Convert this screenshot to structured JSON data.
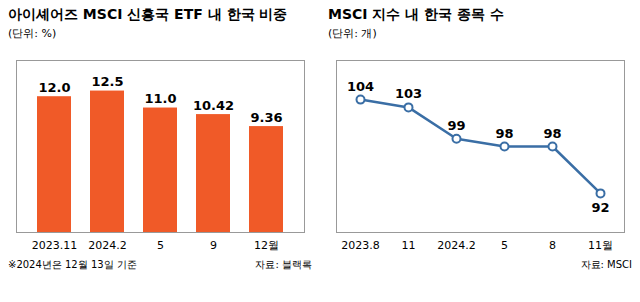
{
  "chart_data": [
    {
      "type": "bar",
      "title": "아이셰어즈 MSCI 신흥국 ETF 내 한국 비중",
      "subtitle": "(단위: %)",
      "categories": [
        "2023.11",
        "2024.2",
        "5",
        "9",
        "12월"
      ],
      "values": [
        12.0,
        12.5,
        11.0,
        10.42,
        9.36
      ],
      "value_labels": [
        "12.0",
        "12.5",
        "11.0",
        "10.42",
        "9.36"
      ],
      "color": "#F05A28",
      "ylim": [
        0,
        15.2
      ],
      "yticks": [],
      "data_labels": true,
      "tick_labels": "x",
      "grid": false,
      "annotations": [
        "※2024년은 12월 13일 기준",
        "자료: 블랙록"
      ]
    },
    {
      "type": "line",
      "title": "MSCI 지수 내 한국 종목 수",
      "subtitle": "(단위: 개)",
      "categories": [
        "2023.8",
        "11",
        "2024.2",
        "5",
        "8",
        "11월"
      ],
      "values": [
        104,
        103,
        99,
        98,
        98,
        92
      ],
      "color": "#3A6EA5",
      "marker": "circle",
      "ylim": [
        87,
        109
      ],
      "yticks": [],
      "data_labels": true,
      "tick_labels": "x",
      "grid": false,
      "annotations": [
        "자료: MSCI"
      ]
    }
  ]
}
